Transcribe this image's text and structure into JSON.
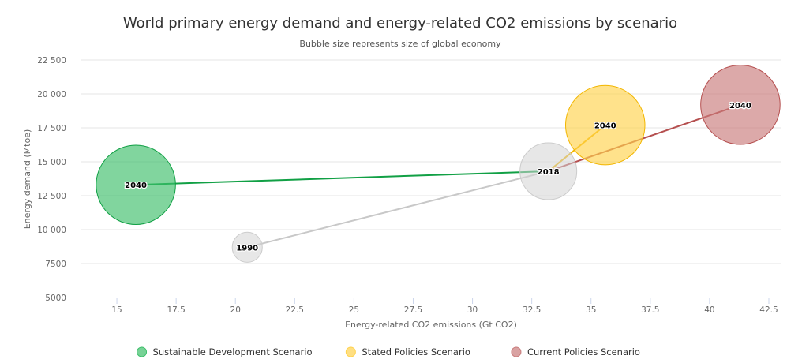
{
  "chart_data": {
    "type": "scatter",
    "title": "World primary energy demand and energy-related CO2 emissions by scenario",
    "subtitle": "Bubble size represents size of global economy",
    "xlabel": "Energy-related CO2 emissions (Gt CO2)",
    "ylabel": "Energy demand (Mtoe)",
    "xlim": [
      13.5,
      43
    ],
    "ylim": [
      5000,
      22500
    ],
    "x_ticks": [
      15,
      17.5,
      20,
      22.5,
      25,
      27.5,
      30,
      32.5,
      35,
      37.5,
      40,
      42.5
    ],
    "y_ticks": [
      5000,
      7500,
      10000,
      12500,
      15000,
      17500,
      20000,
      22500
    ],
    "x_tick_labels": [
      "15",
      "17.5",
      "20",
      "22.5",
      "25",
      "27.5",
      "30",
      "32.5",
      "35",
      "37.5",
      "40",
      "42.5"
    ],
    "y_tick_labels": [
      "5000",
      "7500",
      "10 000",
      "12 500",
      "15 000",
      "17 500",
      "20 000",
      "22 500"
    ],
    "grid": true,
    "legend_position": "bottom-center",
    "legend": [
      {
        "label": "Sustainable Development Scenario",
        "color": "#3dbf6a"
      },
      {
        "label": "Stated Policies Scenario",
        "color": "#ffd24d"
      },
      {
        "label": "Current Policies Scenario",
        "color": "#c97b7b"
      }
    ],
    "history": {
      "color": "#c8c8c8",
      "points": [
        {
          "label": "1990",
          "x": 20.5,
          "y": 8700,
          "gdp": 0.28
        },
        {
          "label": "2018",
          "x": 33.2,
          "y": 14300,
          "gdp": 1.0
        }
      ]
    },
    "series": [
      {
        "name": "Sustainable Development Scenario",
        "fill": "#3dbf6a",
        "stroke": "#11a045",
        "line": "#11a045",
        "points": [
          {
            "label": "2018",
            "x": 33.2,
            "y": 14300,
            "gdp": 1.0
          },
          {
            "label": "2040",
            "x": 15.8,
            "y": 13300,
            "gdp": 1.95
          }
        ]
      },
      {
        "name": "Stated Policies Scenario",
        "fill": "#ffd24d",
        "stroke": "#f2b600",
        "line": "#f2b600",
        "points": [
          {
            "label": "2018",
            "x": 33.2,
            "y": 14300,
            "gdp": 1.0
          },
          {
            "label": "2040",
            "x": 35.6,
            "y": 17700,
            "gdp": 1.95
          }
        ]
      },
      {
        "name": "Current Policies Scenario",
        "fill": "#c97b7b",
        "stroke": "#b54f4f",
        "line": "#b54f4f",
        "points": [
          {
            "label": "2018",
            "x": 33.2,
            "y": 14300,
            "gdp": 1.0
          },
          {
            "label": "2040",
            "x": 41.3,
            "y": 19200,
            "gdp": 1.95
          }
        ]
      }
    ]
  }
}
